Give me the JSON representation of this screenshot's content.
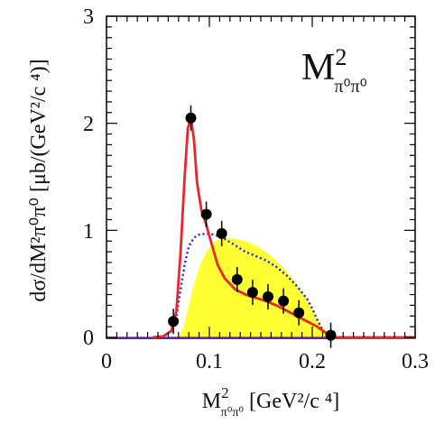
{
  "chart_data": {
    "type": "line",
    "xlim": [
      0,
      0.3
    ],
    "ylim": [
      0,
      3
    ],
    "x_ticks": [
      "0",
      "0.1",
      "0.2",
      "0.3"
    ],
    "y_ticks": [
      "0",
      "1",
      "2",
      "3"
    ],
    "xlabel_main": "M",
    "xlabel_sub": "π⁰π⁰",
    "xlabel_sup": "2",
    "xlabel_units": "[GeV²/c ⁴]",
    "ylabel": "dσ/dM²π⁰π⁰ [μb/(GeV²/c ⁴)]",
    "panel_label_main": "M",
    "panel_label_sup": "2",
    "panel_label_sub": "π⁰π⁰",
    "colors": {
      "fit": "#e8262c",
      "phase_space": "#1a1aff",
      "yellow_fill": "#ffff33",
      "data_points": "#000000",
      "baseline": "#8a2be2"
    },
    "data_points": {
      "x": [
        0.065,
        0.082,
        0.097,
        0.112,
        0.127,
        0.142,
        0.157,
        0.172,
        0.187,
        0.218
      ],
      "y": [
        0.15,
        2.05,
        1.15,
        0.97,
        0.54,
        0.42,
        0.38,
        0.34,
        0.23,
        0.02
      ]
    },
    "series": [
      {
        "style": "solid",
        "x": [
          0.045,
          0.055,
          0.063,
          0.068,
          0.072,
          0.076,
          0.079,
          0.082,
          0.085,
          0.088,
          0.092,
          0.097,
          0.102,
          0.108,
          0.115,
          0.125,
          0.135,
          0.145,
          0.155,
          0.165,
          0.175,
          0.185,
          0.195,
          0.205,
          0.212,
          0.218,
          0.222,
          0.3
        ],
        "y": [
          0,
          0.01,
          0.06,
          0.25,
          0.8,
          1.5,
          1.95,
          2.05,
          1.85,
          1.45,
          1.2,
          1.05,
          0.88,
          0.68,
          0.55,
          0.45,
          0.4,
          0.37,
          0.34,
          0.3,
          0.25,
          0.2,
          0.15,
          0.1,
          0.05,
          0.02,
          0,
          0
        ]
      },
      {
        "style": "dotted",
        "x": [
          0.045,
          0.055,
          0.063,
          0.068,
          0.072,
          0.076,
          0.08,
          0.085,
          0.09,
          0.097,
          0.105,
          0.115,
          0.125,
          0.135,
          0.145,
          0.155,
          0.165,
          0.175,
          0.185,
          0.195,
          0.2,
          0.205,
          0.21,
          0.215,
          0.22,
          0.3
        ],
        "y": [
          0,
          0.01,
          0.06,
          0.2,
          0.45,
          0.68,
          0.85,
          0.93,
          0.96,
          0.97,
          0.96,
          0.92,
          0.86,
          0.8,
          0.76,
          0.72,
          0.66,
          0.58,
          0.48,
          0.36,
          0.27,
          0.16,
          0.07,
          0.02,
          0,
          0
        ]
      },
      {
        "style": "filled",
        "x": [
          0.07,
          0.075,
          0.08,
          0.085,
          0.09,
          0.095,
          0.1,
          0.105,
          0.11,
          0.115,
          0.125,
          0.135,
          0.145,
          0.155,
          0.165,
          0.175,
          0.185,
          0.19,
          0.195,
          0.2,
          0.205,
          0.21,
          0.215,
          0.218
        ],
        "y": [
          0,
          0.1,
          0.3,
          0.5,
          0.65,
          0.76,
          0.84,
          0.89,
          0.92,
          0.93,
          0.92,
          0.9,
          0.86,
          0.8,
          0.72,
          0.62,
          0.5,
          0.43,
          0.36,
          0.27,
          0.18,
          0.1,
          0.04,
          0
        ]
      }
    ]
  }
}
